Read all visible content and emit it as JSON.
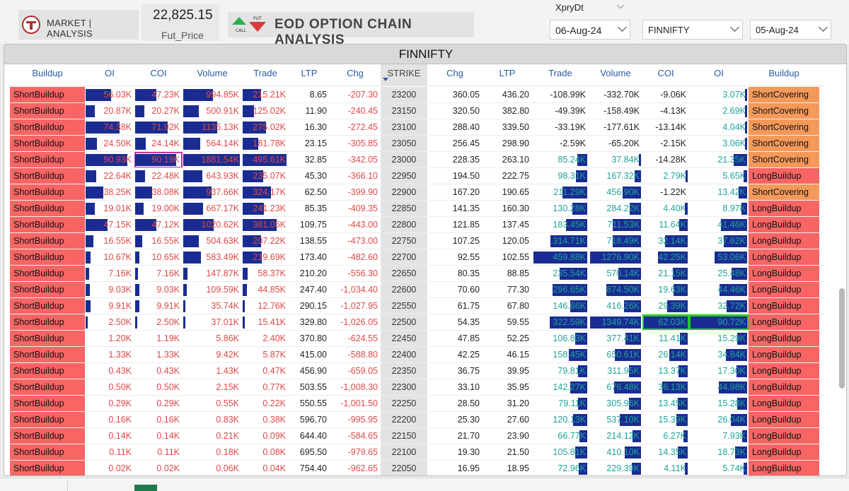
{
  "header": {
    "brand_label": "MARKET | ANALYSIS",
    "fut_price": "22,825.15",
    "fut_label": "Fut_Price",
    "title": "EOD OPTION CHAIN ANALYSIS",
    "call_icon_label": "CALL",
    "put_icon_label": "PUT",
    "xpry_label": "XpryDt",
    "expiry_value": "06-Aug-24",
    "symbol_value": "FINNIFTY",
    "date_value": "05-Aug-24"
  },
  "panel": {
    "title": "FINNIFTY",
    "columns": [
      "Buildup",
      "OI",
      "COI",
      "Volume",
      "Trade",
      "LTP",
      "Chg",
      "STRIKE",
      "Chg",
      "LTP",
      "Trade",
      "Volume",
      "COI",
      "OI",
      "Buildup"
    ]
  },
  "colors": {
    "short_buildup": "#f76565",
    "short_covering": "#f4995a",
    "long_buildup": "#f76565",
    "bar": "#1a2c92",
    "call_text": "#e04848",
    "put_text": "#1fa39a",
    "highlight_call": "#c8359e",
    "highlight_put": "#23d01a"
  },
  "rows": [
    {
      "cb": "ShortBuildup",
      "coi": "56.03K",
      "ccoi": "47.23K",
      "cvol": "994.85K",
      "ctr": "215.21K",
      "cltp": "8.65",
      "cchg": "-207.30",
      "strike": "23200",
      "pchg": "360.05",
      "pltp": "436.20",
      "ptr": "-108.99K",
      "pvol": "-332.70K",
      "pcoi": "-9.06K",
      "poi": "3.07K",
      "pb": "ShortCovering",
      "bars": {
        "coi": 0.55,
        "ccoi": 0.47,
        "cvol": 0.53,
        "ctr": 0.42,
        "ptr": 0,
        "pvol": 0,
        "pcoi": 0,
        "poi": 0.04
      }
    },
    {
      "cb": "ShortBuildup",
      "coi": "20.87K",
      "ccoi": "20.27K",
      "cvol": "500.91K",
      "ctr": "125.02K",
      "cltp": "11.90",
      "cchg": "-240.45",
      "strike": "23150",
      "pchg": "320.50",
      "pltp": "382.80",
      "ptr": "-49.39K",
      "pvol": "-158.49K",
      "pcoi": "-4.13K",
      "poi": "2.69K",
      "pb": "ShortCovering",
      "bars": {
        "coi": 0.2,
        "ccoi": 0.2,
        "cvol": 0.27,
        "ctr": 0.25,
        "ptr": 0,
        "pvol": 0,
        "pcoi": 0,
        "poi": 0.03
      }
    },
    {
      "cb": "ShortBuildup",
      "coi": "74.38K",
      "ccoi": "71.92K",
      "cvol": "1135.13K",
      "ctr": "275.02K",
      "cltp": "16.30",
      "cchg": "-272.45",
      "strike": "23100",
      "pchg": "288.40",
      "pltp": "339.50",
      "ptr": "-33.19K",
      "pvol": "-177.61K",
      "pcoi": "-13.14K",
      "poi": "4.04K",
      "pb": "ShortCovering",
      "bars": {
        "coi": 0.72,
        "ccoi": 0.72,
        "cvol": 0.6,
        "ctr": 0.54,
        "ptr": 0,
        "pvol": 0,
        "pcoi": 0,
        "poi": 0.04
      }
    },
    {
      "cb": "ShortBuildup",
      "coi": "24.50K",
      "ccoi": "24.14K",
      "cvol": "564.14K",
      "ctr": "181.78K",
      "cltp": "23.15",
      "cchg": "-305.85",
      "strike": "23050",
      "pchg": "256.45",
      "pltp": "298.90",
      "ptr": "-2.59K",
      "pvol": "-65.20K",
      "pcoi": "-2.15K",
      "poi": "3.06K",
      "pb": "ShortCovering",
      "bars": {
        "coi": 0.24,
        "ccoi": 0.24,
        "cvol": 0.3,
        "ctr": 0.36,
        "ptr": 0,
        "pvol": 0,
        "pcoi": 0,
        "poi": 0.03
      }
    },
    {
      "cb": "ShortBuildup",
      "coi": "90.93K",
      "ccoi": "90.19K",
      "cvol": "1881.54K",
      "ctr": "495.61K",
      "cltp": "32.85",
      "cchg": "-342.05",
      "strike": "23000",
      "pchg": "228.35",
      "pltp": "263.10",
      "ptr": "85.24K",
      "pvol": "37.84K",
      "pcoi": "-14.28K",
      "poi": "21.35K",
      "pb": "ShortCovering",
      "bars": {
        "coi": 0.9,
        "ccoi": 0.9,
        "cvol": 1.0,
        "ctr": 1.0,
        "ptr": 0.18,
        "pvol": 0.03,
        "pcoi": 0,
        "poi": 0.24
      }
    },
    {
      "cb": "ShortBuildup",
      "coi": "22.64K",
      "ccoi": "22.48K",
      "cvol": "643.93K",
      "ctr": "235.07K",
      "cltp": "45.30",
      "cchg": "-366.10",
      "strike": "22950",
      "pchg": "194.50",
      "pltp": "222.75",
      "ptr": "98.31K",
      "pvol": "167.32K",
      "pcoi": "2.79K",
      "poi": "5.65K",
      "pb": "LongBuildup",
      "bars": {
        "coi": 0.22,
        "ccoi": 0.22,
        "cvol": 0.34,
        "ctr": 0.47,
        "ptr": 0.21,
        "pvol": 0.13,
        "pcoi": 0.04,
        "poi": 0.06
      }
    },
    {
      "cb": "ShortBuildup",
      "coi": "38.25K",
      "ccoi": "38.08K",
      "cvol": "937.66K",
      "ctr": "324.17K",
      "cltp": "62.50",
      "cchg": "-399.90",
      "strike": "22900",
      "pchg": "167.20",
      "pltp": "190.65",
      "ptr": "211.29K",
      "pvol": "456.90K",
      "pcoi": "-1.22K",
      "poi": "13.42K",
      "pb": "ShortCovering",
      "bars": {
        "coi": 0.38,
        "ccoi": 0.38,
        "cvol": 0.5,
        "ctr": 0.65,
        "ptr": 0.46,
        "pvol": 0.36,
        "pcoi": 0,
        "poi": 0.15
      }
    },
    {
      "cb": "ShortBuildup",
      "coi": "19.01K",
      "ccoi": "19.00K",
      "cvol": "667.17K",
      "ctr": "241.23K",
      "cltp": "85.35",
      "cchg": "-409.35",
      "strike": "22850",
      "pchg": "141.35",
      "pltp": "160.30",
      "ptr": "130.28K",
      "pvol": "284.22K",
      "pcoi": "4.40K",
      "poi": "8.97K",
      "pb": "LongBuildup",
      "bars": {
        "coi": 0.19,
        "ccoi": 0.19,
        "cvol": 0.35,
        "ctr": 0.49,
        "ptr": 0.28,
        "pvol": 0.22,
        "pcoi": 0.07,
        "poi": 0.1
      }
    },
    {
      "cb": "ShortBuildup",
      "coi": "47.15K",
      "ccoi": "47.12K",
      "cvol": "1020.62K",
      "ctr": "381.05K",
      "cltp": "109.75",
      "cchg": "-443.00",
      "strike": "22800",
      "pchg": "121.85",
      "pltp": "137.45",
      "ptr": "183.45K",
      "pvol": "711.53K",
      "pcoi": "11.64K",
      "poi": "41.46K",
      "pb": "LongBuildup",
      "bars": {
        "coi": 0.47,
        "ccoi": 0.47,
        "cvol": 0.54,
        "ctr": 0.77,
        "ptr": 0.4,
        "pvol": 0.56,
        "pcoi": 0.19,
        "poi": 0.46
      }
    },
    {
      "cb": "ShortBuildup",
      "coi": "16.55K",
      "ccoi": "16.55K",
      "cvol": "504.63K",
      "ctr": "207.22K",
      "cltp": "138.55",
      "cchg": "-473.00",
      "strike": "22750",
      "pchg": "107.25",
      "pltp": "120.05",
      "ptr": "314.71K",
      "pvol": "718.49K",
      "pcoi": "32.14K",
      "poi": "37.62K",
      "pb": "LongBuildup",
      "bars": {
        "coi": 0.16,
        "ccoi": 0.16,
        "cvol": 0.27,
        "ctr": 0.42,
        "ptr": 0.68,
        "pvol": 0.56,
        "pcoi": 0.52,
        "poi": 0.41
      }
    },
    {
      "cb": "ShortBuildup",
      "coi": "10.67K",
      "ccoi": "10.65K",
      "cvol": "583.49K",
      "ctr": "219.69K",
      "cltp": "173.40",
      "cchg": "-482.60",
      "strike": "22700",
      "pchg": "92.55",
      "pltp": "102.55",
      "ptr": "459.88K",
      "pvol": "1276.90K",
      "pcoi": "42.25K",
      "poi": "53.06K",
      "pb": "LongBuildup",
      "bars": {
        "coi": 0.1,
        "ccoi": 0.1,
        "cvol": 0.31,
        "ctr": 0.44,
        "ptr": 1.0,
        "pvol": 1.0,
        "pcoi": 0.68,
        "poi": 0.58
      }
    },
    {
      "cb": "ShortBuildup",
      "coi": "7.16K",
      "ccoi": "7.16K",
      "cvol": "147.87K",
      "ctr": "58.37K",
      "cltp": "210.20",
      "cchg": "-556.30",
      "strike": "22650",
      "pchg": "80.35",
      "pltp": "88.85",
      "ptr": "235.54K",
      "pvol": "570.14K",
      "pcoi": "21.15K",
      "poi": "25.48K",
      "pb": "LongBuildup",
      "bars": {
        "coi": 0.07,
        "ccoi": 0.07,
        "cvol": 0.08,
        "ctr": 0.12,
        "ptr": 0.51,
        "pvol": 0.45,
        "pcoi": 0.34,
        "poi": 0.28
      }
    },
    {
      "cb": "ShortBuildup",
      "coi": "9.03K",
      "ccoi": "9.03K",
      "cvol": "109.59K",
      "ctr": "44.85K",
      "cltp": "247.40",
      "cchg": "-1,034.40",
      "strike": "22600",
      "pchg": "70.60",
      "pltp": "77.30",
      "ptr": "296.65K",
      "pvol": "874.50K",
      "pcoi": "19.63K",
      "poi": "44.46K",
      "pb": "LongBuildup",
      "bars": {
        "coi": 0.09,
        "ccoi": 0.09,
        "cvol": 0.06,
        "ctr": 0.09,
        "ptr": 0.64,
        "pvol": 0.68,
        "pcoi": 0.32,
        "poi": 0.49
      }
    },
    {
      "cb": "ShortBuildup",
      "coi": "9.91K",
      "ccoi": "9.91K",
      "cvol": "35.74K",
      "ctr": "12.76K",
      "cltp": "290.15",
      "cchg": "-1,027.95",
      "strike": "22550",
      "pchg": "61.75",
      "pltp": "67.80",
      "ptr": "146.66K",
      "pvol": "416.26K",
      "pcoi": "29.39K",
      "poi": "32.72K",
      "pb": "LongBuildup",
      "bars": {
        "coi": 0.1,
        "ccoi": 0.1,
        "cvol": 0.02,
        "ctr": 0.03,
        "ptr": 0.32,
        "pvol": 0.33,
        "pcoi": 0.47,
        "poi": 0.36
      }
    },
    {
      "cb": "ShortBuildup",
      "coi": "2.50K",
      "ccoi": "2.50K",
      "cvol": "37.01K",
      "ctr": "15.41K",
      "cltp": "329.80",
      "cchg": "-1,026.05",
      "strike": "22500",
      "pchg": "54.35",
      "pltp": "59.55",
      "ptr": "322.59K",
      "pvol": "1349.74K",
      "pcoi": "62.03K",
      "poi": "90.72K",
      "pb": "LongBuildup",
      "bars": {
        "coi": 0.03,
        "ccoi": 0.03,
        "cvol": 0.02,
        "ctr": 0.03,
        "ptr": 0.7,
        "pvol": 1.0,
        "pcoi": 1.0,
        "poi": 1.0
      }
    },
    {
      "cb": "ShortBuildup",
      "coi": "1.20K",
      "ccoi": "1.19K",
      "cvol": "5.86K",
      "ctr": "2.40K",
      "cltp": "370.80",
      "cchg": "-624.55",
      "strike": "22450",
      "pchg": "47.85",
      "pltp": "52.25",
      "ptr": "106.83K",
      "pvol": "377.41K",
      "pcoi": "11.41K",
      "poi": "15.29K",
      "pb": "LongBuildup",
      "bars": {
        "coi": 0,
        "ccoi": 0,
        "cvol": 0,
        "ctr": 0,
        "ptr": 0.23,
        "pvol": 0.3,
        "pcoi": 0.18,
        "poi": 0.17
      }
    },
    {
      "cb": "ShortBuildup",
      "coi": "1.33K",
      "ccoi": "1.33K",
      "cvol": "9.42K",
      "ctr": "5.87K",
      "cltp": "415.00",
      "cchg": "-588.80",
      "strike": "22400",
      "pchg": "42.25",
      "pltp": "46.15",
      "ptr": "158.45K",
      "pvol": "650.61K",
      "pcoi": "26.14K",
      "poi": "34.84K",
      "pb": "LongBuildup",
      "bars": {
        "coi": 0,
        "ccoi": 0,
        "cvol": 0,
        "ctr": 0,
        "ptr": 0.34,
        "pvol": 0.51,
        "pcoi": 0.42,
        "poi": 0.38
      }
    },
    {
      "cb": "ShortBuildup",
      "coi": "0.43K",
      "ccoi": "0.43K",
      "cvol": "1.43K",
      "ctr": "0.47K",
      "cltp": "456.90",
      "cchg": "-659.05",
      "strike": "22350",
      "pchg": "36.75",
      "pltp": "39.95",
      "ptr": "79.81K",
      "pvol": "311.95K",
      "pcoi": "13.37K",
      "poi": "17.30K",
      "pb": "LongBuildup",
      "bars": {
        "coi": 0,
        "ccoi": 0,
        "cvol": 0,
        "ctr": 0,
        "ptr": 0.17,
        "pvol": 0.24,
        "pcoi": 0.21,
        "poi": 0.19
      }
    },
    {
      "cb": "ShortBuildup",
      "coi": "0.50K",
      "ccoi": "0.50K",
      "cvol": "2.15K",
      "ctr": "0.77K",
      "cltp": "503.55",
      "cchg": "-1,008.30",
      "strike": "22300",
      "pchg": "33.10",
      "pltp": "35.95",
      "ptr": "142.27K",
      "pvol": "676.48K",
      "pcoi": "36.13K",
      "poi": "44.98K",
      "pb": "LongBuildup",
      "bars": {
        "coi": 0,
        "ccoi": 0,
        "cvol": 0,
        "ctr": 0,
        "ptr": 0.31,
        "pvol": 0.53,
        "pcoi": 0.58,
        "poi": 0.5
      }
    },
    {
      "cb": "ShortBuildup",
      "coi": "0.29K",
      "ccoi": "0.29K",
      "cvol": "0.55K",
      "ctr": "0.22K",
      "cltp": "550.55",
      "cchg": "-1,001.50",
      "strike": "22250",
      "pchg": "28.50",
      "pltp": "31.20",
      "ptr": "79.11K",
      "pvol": "305.96K",
      "pcoi": "13.45K",
      "poi": "15.28K",
      "pb": "LongBuildup",
      "bars": {
        "coi": 0,
        "ccoi": 0,
        "cvol": 0,
        "ctr": 0,
        "ptr": 0.17,
        "pvol": 0.24,
        "pcoi": 0.22,
        "poi": 0.17
      }
    },
    {
      "cb": "ShortBuildup",
      "coi": "0.16K",
      "ccoi": "0.16K",
      "cvol": "0.83K",
      "ctr": "0.38K",
      "cltp": "596.70",
      "cchg": "-995.95",
      "strike": "22200",
      "pchg": "25.30",
      "pltp": "27.60",
      "ptr": "120.13K",
      "pvol": "537.10K",
      "pcoi": "15.39K",
      "poi": "26.04K",
      "pb": "LongBuildup",
      "bars": {
        "coi": 0,
        "ccoi": 0,
        "cvol": 0,
        "ctr": 0,
        "ptr": 0.26,
        "pvol": 0.42,
        "pcoi": 0.25,
        "poi": 0.29
      }
    },
    {
      "cb": "ShortBuildup",
      "coi": "0.14K",
      "ccoi": "0.14K",
      "cvol": "0.21K",
      "ctr": "0.09K",
      "cltp": "644.40",
      "cchg": "-584.65",
      "strike": "22150",
      "pchg": "21.70",
      "pltp": "23.90",
      "ptr": "66.77K",
      "pvol": "214.12K",
      "pcoi": "6.27K",
      "poi": "7.93K",
      "pb": "LongBuildup",
      "bars": {
        "coi": 0,
        "ccoi": 0,
        "cvol": 0,
        "ctr": 0,
        "ptr": 0.15,
        "pvol": 0.17,
        "pcoi": 0.1,
        "poi": 0.09
      }
    },
    {
      "cb": "ShortBuildup",
      "coi": "0.11K",
      "ccoi": "0.11K",
      "cvol": "0.18K",
      "ctr": "0.08K",
      "cltp": "695.50",
      "cchg": "-979.65",
      "strike": "22100",
      "pchg": "19.30",
      "pltp": "21.50",
      "ptr": "105.81K",
      "pvol": "410.10K",
      "pcoi": "14.35K",
      "poi": "18.73K",
      "pb": "LongBuildup",
      "bars": {
        "coi": 0,
        "ccoi": 0,
        "cvol": 0,
        "ctr": 0,
        "ptr": 0.23,
        "pvol": 0.32,
        "pcoi": 0.23,
        "poi": 0.21
      }
    },
    {
      "cb": "ShortBuildup",
      "coi": "0.02K",
      "ccoi": "0.02K",
      "cvol": "0.06K",
      "ctr": "0.04K",
      "cltp": "754.40",
      "cchg": "-962.65",
      "strike": "22050",
      "pchg": "16.95",
      "pltp": "18.95",
      "ptr": "72.96K",
      "pvol": "229.39K",
      "pcoi": "4.11K",
      "poi": "5.74K",
      "pb": "LongBuildup",
      "bars": {
        "coi": 0,
        "ccoi": 0,
        "cvol": 0,
        "ctr": 0,
        "ptr": 0.16,
        "pvol": 0.18,
        "pcoi": 0.07,
        "poi": 0.06
      }
    }
  ]
}
